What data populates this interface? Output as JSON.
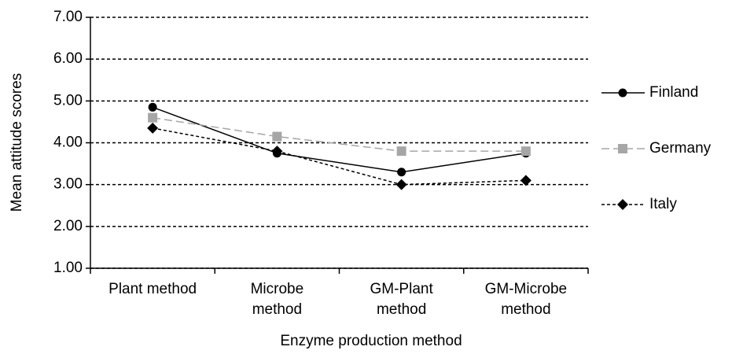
{
  "chart_data": {
    "type": "line",
    "xlabel": "Enzyme production method",
    "ylabel": "Mean attitude scores",
    "categories": [
      "Plant method",
      "Microbe\nmethod",
      "GM-Plant\nmethod",
      "GM-Microbe\nmethod"
    ],
    "series": [
      {
        "name": "Finland",
        "color": "#000000",
        "marker": "circle",
        "line_style": "solid",
        "values": [
          4.85,
          3.75,
          3.3,
          3.75
        ]
      },
      {
        "name": "Germany",
        "color": "#a6a6a6",
        "marker": "square",
        "line_style": "dashed",
        "values": [
          4.6,
          4.15,
          3.8,
          3.8
        ]
      },
      {
        "name": "Italy",
        "color": "#000000",
        "marker": "diamond",
        "line_style": "dotted",
        "values": [
          4.35,
          3.8,
          3.0,
          3.1
        ]
      }
    ],
    "ylim": [
      1,
      7
    ],
    "yticks": [
      {
        "value": 1,
        "label": "1.00"
      },
      {
        "value": 2,
        "label": "2.00"
      },
      {
        "value": 3,
        "label": "3.00"
      },
      {
        "value": 4,
        "label": "4.00"
      },
      {
        "value": 5,
        "label": "5.00"
      },
      {
        "value": 6,
        "label": "6.00"
      },
      {
        "value": 7,
        "label": "7.00"
      }
    ],
    "grid": true,
    "legend": "right"
  }
}
